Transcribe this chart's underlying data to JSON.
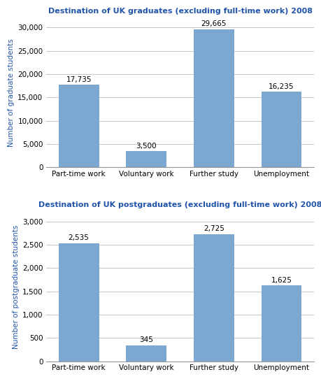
{
  "grad_title": "Destination of UK graduates (excluding full-time work) 2008",
  "postgrad_title": "Destination of UK postgraduates (excluding full-time work) 2008",
  "categories": [
    "Part-time work",
    "Voluntary work",
    "Further study",
    "Unemployment"
  ],
  "grad_values": [
    17735,
    3500,
    29665,
    16235
  ],
  "postgrad_values": [
    2535,
    345,
    2725,
    1625
  ],
  "grad_labels": [
    "17,735",
    "3,500",
    "29,665",
    "16,235"
  ],
  "postgrad_labels": [
    "2,535",
    "345",
    "2,725",
    "1,625"
  ],
  "bar_color": "#7ba7d0",
  "grad_ylabel": "Number of graduate students",
  "postgrad_ylabel": "Number of postgraduate students",
  "grad_ylim": [
    0,
    32000
  ],
  "postgrad_ylim": [
    0,
    3200
  ],
  "grad_yticks": [
    0,
    5000,
    10000,
    15000,
    20000,
    25000,
    30000
  ],
  "postgrad_yticks": [
    0,
    500,
    1000,
    1500,
    2000,
    2500,
    3000
  ],
  "title_color": "#2255aa",
  "ylabel_color": "#2255aa",
  "title_fontsize": 8.0,
  "label_fontsize": 7.5,
  "ylabel_fontsize": 7.5,
  "tick_fontsize": 7.5,
  "background_color": "#ffffff",
  "grid_color": "#bbbbbb"
}
